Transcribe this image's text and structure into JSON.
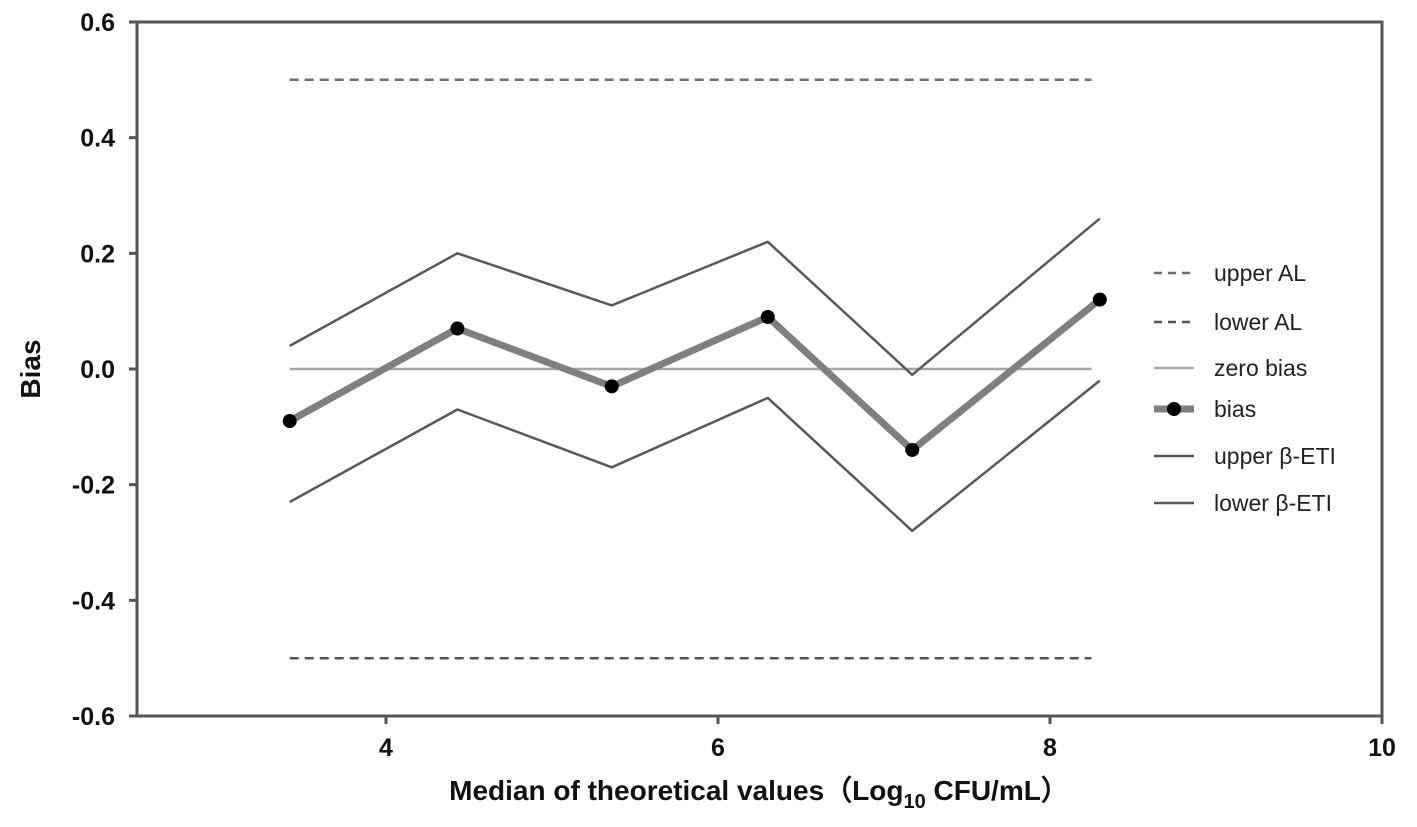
{
  "chart_data": {
    "type": "line",
    "xlabel": "Median of theoretical values（Log",
    "xlabel_sub": "10",
    "xlabel_tail": " CFU/mL）",
    "ylabel": "Bias",
    "xlim": [
      2.5,
      10
    ],
    "ylim": [
      -0.6,
      0.6
    ],
    "x_ticks": [
      4,
      6,
      8,
      10
    ],
    "x_tick_labels": [
      "4",
      "6",
      "8",
      "10"
    ],
    "y_ticks": [
      -0.6,
      -0.4,
      -0.2,
      0.0,
      0.2,
      0.4,
      0.6
    ],
    "y_tick_labels": [
      "-0.6",
      "-0.4",
      "-0.2",
      "0.0",
      "0.2",
      "0.4",
      "0.6"
    ],
    "grid": false,
    "legend_position": "right",
    "series": [
      {
        "name": "upper AL",
        "style": "dashed",
        "color": "#6e6e6e",
        "width": 2.5,
        "x": [
          3.42,
          8.25
        ],
        "y": [
          0.5,
          0.5
        ]
      },
      {
        "name": "lower AL",
        "style": "dashed",
        "color": "#555555",
        "width": 2.5,
        "x": [
          3.42,
          8.25
        ],
        "y": [
          -0.5,
          -0.5
        ]
      },
      {
        "name": "zero bias",
        "style": "solid",
        "color": "#a6a6a6",
        "width": 2.5,
        "x": [
          3.42,
          8.25
        ],
        "y": [
          0.0,
          0.0
        ]
      },
      {
        "name": "bias",
        "style": "solid",
        "color": "#7f7f7f",
        "width": 7,
        "markers": true,
        "marker_color": "#000000",
        "x": [
          3.42,
          4.43,
          5.36,
          6.3,
          7.17,
          8.3
        ],
        "y": [
          -0.09,
          0.07,
          -0.03,
          0.09,
          -0.14,
          0.12
        ]
      },
      {
        "name": "upper β-ETI",
        "style": "solid",
        "color": "#595959",
        "width": 2.5,
        "x": [
          3.42,
          4.43,
          5.36,
          6.3,
          7.17,
          8.3
        ],
        "y": [
          0.04,
          0.2,
          0.11,
          0.22,
          -0.01,
          0.26
        ]
      },
      {
        "name": "lower β-ETI",
        "style": "solid",
        "color": "#595959",
        "width": 2.5,
        "x": [
          3.42,
          4.43,
          5.36,
          6.3,
          7.17,
          8.3
        ],
        "y": [
          -0.23,
          -0.07,
          -0.17,
          -0.05,
          -0.28,
          -0.02
        ]
      }
    ]
  }
}
